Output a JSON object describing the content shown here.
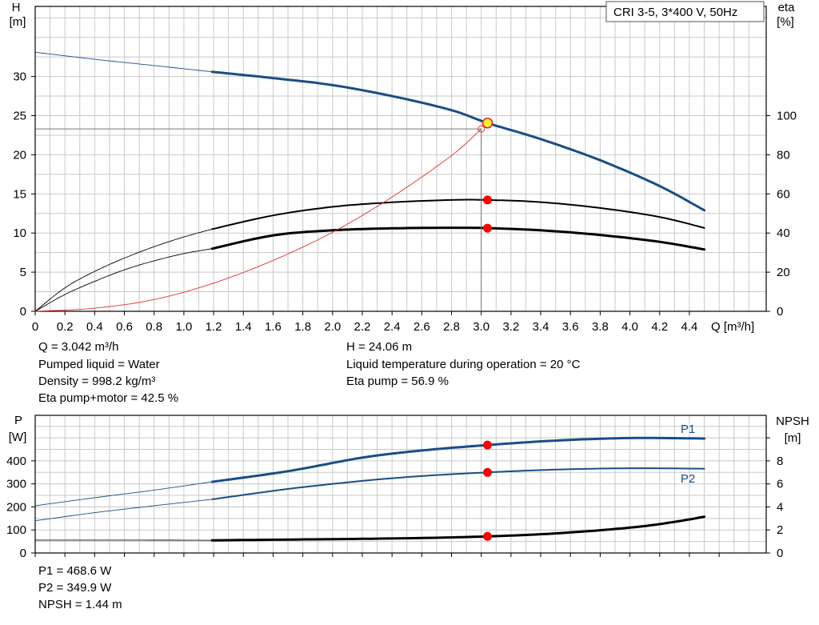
{
  "chart_data": [
    {
      "type": "line",
      "title": "CRI 3-5, 3*400 V, 50Hz",
      "xlabel": "Q [m³/h]",
      "ylabel": [
        "H",
        "[m]"
      ],
      "y2label": [
        "eta",
        "[%]"
      ],
      "xlim": [
        0,
        4.8
      ],
      "ylim": [
        0,
        35
      ],
      "y2lim": [
        0,
        140
      ],
      "grid": true,
      "x_ticks": [
        "0",
        "0.2",
        "0.4",
        "0.6",
        "0.8",
        "1.0",
        "1.2",
        "1.4",
        "1.6",
        "1.8",
        "2.0",
        "2.2",
        "2.4",
        "2.6",
        "2.8",
        "3.0",
        "3.2",
        "3.4",
        "3.6",
        "3.8",
        "4.0",
        "4.2",
        "4.4"
      ],
      "y_ticks": [
        "0",
        "5",
        "10",
        "15",
        "20",
        "25",
        "30"
      ],
      "y2_ticks": [
        "0",
        "20",
        "40",
        "60",
        "80",
        "100"
      ],
      "series": [
        {
          "id": "head",
          "color": "#1a4d85",
          "axis": "left",
          "thin_x": [
            0,
            0.4,
            0.8,
            1.19
          ],
          "thin_y": [
            33.1,
            32.2,
            31.4,
            30.6
          ],
          "thick_x": [
            1.19,
            1.6,
            2.0,
            2.4,
            2.8,
            3.042,
            3.4,
            3.8,
            4.2,
            4.5
          ],
          "thick_y": [
            30.6,
            29.8,
            28.9,
            27.5,
            25.7,
            24.06,
            22.0,
            19.3,
            16.0,
            12.9
          ]
        },
        {
          "id": "eta-pump",
          "color": "#000000",
          "axis": "right",
          "thin_x": [
            0,
            0.2,
            0.4,
            0.6,
            0.8,
            1.0,
            1.19
          ],
          "thin_y": [
            0,
            12,
            20.4,
            27.2,
            33,
            38,
            42
          ],
          "thick_x": [
            1.19,
            1.6,
            2.0,
            2.4,
            2.8,
            3.042,
            3.4,
            3.8,
            4.2,
            4.5
          ],
          "thick_y": [
            42,
            49,
            53.4,
            55.7,
            56.9,
            56.9,
            55.8,
            52.8,
            48.2,
            42.6
          ]
        },
        {
          "id": "eta-pump-motor",
          "color": "#000000",
          "axis": "right",
          "thin_x": [
            0,
            0.2,
            0.4,
            0.6,
            0.8,
            1.0,
            1.19
          ],
          "thin_y": [
            0,
            8.6,
            15.3,
            21.2,
            25.8,
            29.5,
            32
          ],
          "thick_x": [
            1.19,
            1.6,
            2.0,
            2.4,
            2.8,
            3.042,
            3.4,
            3.8,
            4.2,
            4.5
          ],
          "thick_y": [
            32,
            38.8,
            41.4,
            42.4,
            42.7,
            42.5,
            41.4,
            39.0,
            35.5,
            31.6
          ]
        },
        {
          "id": "system-curve",
          "color": "#e03030",
          "axis": "left",
          "thin_x": [
            0,
            0.4,
            0.8,
            1.2,
            1.6,
            2.0,
            2.4,
            2.8,
            3.0
          ],
          "thin_y": [
            0,
            0.4,
            1.5,
            3.6,
            6.5,
            10.1,
            14.6,
            19.9,
            23.3
          ]
        }
      ],
      "duty_point": {
        "x": 3.042,
        "y": 24.06
      },
      "duty_markers": [
        {
          "x": 3.042,
          "y": 56.9,
          "axis": "right"
        },
        {
          "x": 3.042,
          "y": 42.5,
          "axis": "right"
        }
      ],
      "reference_point": {
        "x": 3.0,
        "y": 23.3
      }
    },
    {
      "type": "line",
      "xlabel": "",
      "ylabel": [
        "P",
        "[W]"
      ],
      "y2label": [
        "NPSH",
        "[m]"
      ],
      "xlim": [
        0,
        4.8
      ],
      "ylim": [
        0,
        500
      ],
      "y2lim": [
        0,
        10
      ],
      "grid": true,
      "y_ticks": [
        "0",
        "100",
        "200",
        "300",
        "400"
      ],
      "y2_ticks": [
        "0",
        "2",
        "4",
        "6",
        "8"
      ],
      "series_labels": {
        "p1": "P1",
        "p2": "P2"
      },
      "series": [
        {
          "id": "p1",
          "name": "P1",
          "color": "#1a4d85",
          "axis": "left",
          "thin_x": [
            0,
            0.4,
            0.8,
            1.19
          ],
          "thin_y": [
            205,
            240,
            273,
            309
          ],
          "thick_x": [
            1.19,
            1.7,
            2.2,
            2.6,
            3.042,
            3.5,
            4.0,
            4.5
          ],
          "thick_y": [
            309,
            355,
            414,
            445,
            468.6,
            488,
            499,
            497
          ]
        },
        {
          "id": "p2",
          "name": "P2",
          "color": "#1a4d85",
          "axis": "left",
          "thin_x": [
            0,
            0.4,
            0.8,
            1.19
          ],
          "thin_y": [
            140,
            175,
            205,
            233
          ],
          "thick_x": [
            1.19,
            1.7,
            2.2,
            2.6,
            3.042,
            3.5,
            4.0,
            4.5
          ],
          "thick_y": [
            233,
            278,
            313,
            334,
            349.9,
            362,
            368,
            366
          ]
        },
        {
          "id": "npsh",
          "color": "#000000",
          "axis": "right",
          "thin_x": [
            0,
            0.6,
            1.19
          ],
          "thin_y": [
            1.12,
            1.12,
            1.1
          ],
          "thick_x": [
            1.19,
            2.0,
            2.6,
            3.042,
            3.5,
            4.0,
            4.3,
            4.5
          ],
          "thick_y": [
            1.1,
            1.2,
            1.3,
            1.44,
            1.7,
            2.2,
            2.7,
            3.15
          ]
        }
      ],
      "duty_markers": [
        {
          "x": 3.042,
          "y": 468.6,
          "axis": "left"
        },
        {
          "x": 3.042,
          "y": 349.9,
          "axis": "left"
        },
        {
          "x": 3.042,
          "y": 1.44,
          "axis": "right"
        }
      ]
    }
  ],
  "info_top": {
    "q": "Q = 3.042 m³/h",
    "liquid": "Pumped liquid = Water",
    "density": "Density = 998.2 kg/m³",
    "eta_pm": "Eta pump+motor = 42.5 %",
    "h": "H = 24.06 m",
    "temp": "Liquid temperature during operation = 20 °C",
    "eta_p": "Eta pump = 56.9 %"
  },
  "info_bottom": {
    "p1": "P1 = 468.6 W",
    "p2": "P2 = 349.9 W",
    "npsh": "NPSH = 1.44 m"
  },
  "colors": {
    "grid": "#c8c8c8",
    "blue": "#1a4d85",
    "red": "#ff0000",
    "system": "#e03030",
    "duty_fill": "#ffee33"
  }
}
